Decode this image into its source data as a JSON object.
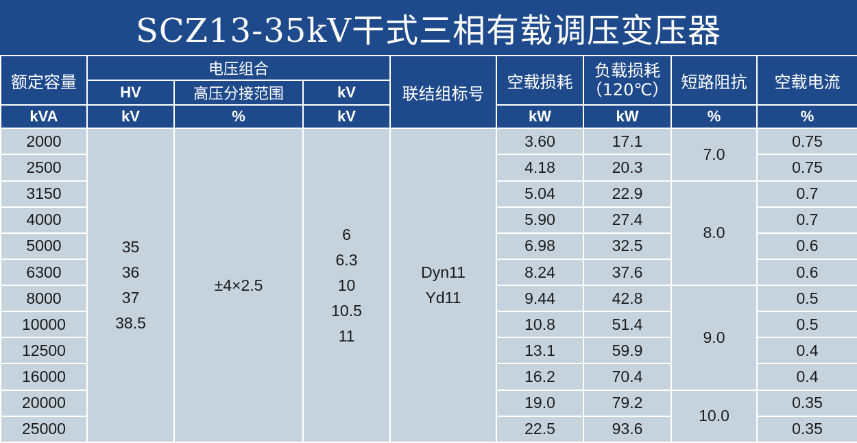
{
  "title": "SCZ13-35kV干式三相有载调压变压器",
  "headers": {
    "rated_capacity": "额定容量",
    "voltage_combination": "电压组合",
    "hv": "HV",
    "hv_tap_range": "高压分接范围",
    "lv": "kV",
    "connection_group": "联结组标号",
    "no_load_loss": "空载损耗",
    "load_loss_line1": "负载损耗",
    "load_loss_line2": "（120℃）",
    "short_circuit_impedance": "短路阻抗",
    "no_load_current": "空载电流"
  },
  "units": {
    "capacity": "kVA",
    "hv": "kV",
    "tap": "%",
    "lv": "kV",
    "no_load_loss": "kW",
    "load_loss": "kW",
    "impedance": "%",
    "current": "%"
  },
  "hv_values": [
    "35",
    "36",
    "37",
    "38.5"
  ],
  "tap_range": "±4×2.5",
  "lv_values": [
    "6",
    "6.3",
    "10",
    "10.5",
    "11"
  ],
  "connection_groups": [
    "Dyn11",
    "Yd11"
  ],
  "rows": [
    {
      "capacity": "2000",
      "no_load_loss": "3.60",
      "load_loss": "17.1",
      "current": "0.75"
    },
    {
      "capacity": "2500",
      "no_load_loss": "4.18",
      "load_loss": "20.3",
      "current": "0.75"
    },
    {
      "capacity": "3150",
      "no_load_loss": "5.04",
      "load_loss": "22.9",
      "current": "0.7"
    },
    {
      "capacity": "4000",
      "no_load_loss": "5.90",
      "load_loss": "27.4",
      "current": "0.7"
    },
    {
      "capacity": "5000",
      "no_load_loss": "6.98",
      "load_loss": "32.5",
      "current": "0.6"
    },
    {
      "capacity": "6300",
      "no_load_loss": "8.24",
      "load_loss": "37.6",
      "current": "0.6"
    },
    {
      "capacity": "8000",
      "no_load_loss": "9.44",
      "load_loss": "42.8",
      "current": "0.5"
    },
    {
      "capacity": "10000",
      "no_load_loss": "10.8",
      "load_loss": "51.4",
      "current": "0.5"
    },
    {
      "capacity": "12500",
      "no_load_loss": "13.1",
      "load_loss": "59.9",
      "current": "0.4"
    },
    {
      "capacity": "16000",
      "no_load_loss": "16.2",
      "load_loss": "70.4",
      "current": "0.4"
    },
    {
      "capacity": "20000",
      "no_load_loss": "19.0",
      "load_loss": "79.2",
      "current": "0.35"
    },
    {
      "capacity": "25000",
      "no_load_loss": "22.5",
      "load_loss": "93.6",
      "current": "0.35"
    }
  ],
  "impedance_groups": [
    "7.0",
    "8.0",
    "9.0",
    "10.0"
  ],
  "colors": {
    "header_bg": "#1e4a8c",
    "cell_bg": "#c7d3dc",
    "grid": "#ffffff"
  }
}
